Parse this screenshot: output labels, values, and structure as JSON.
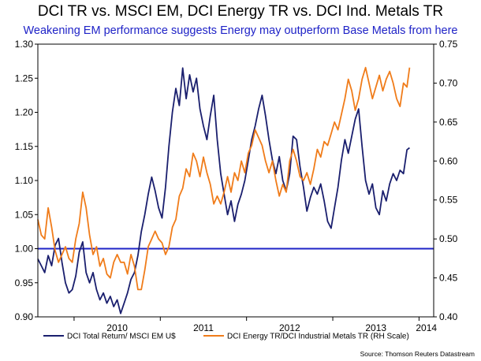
{
  "chart_data": {
    "type": "line",
    "title": "DCI TR vs.  MSCI EM, DCI Energy TR vs. DCI Ind. Metals TR",
    "subtitle": "Weakening EM performance suggests Energy may outperform Base Metals from here",
    "source": "Source: Thomson Reuters Datastream",
    "x_tick_labels": [
      "2010",
      "2011",
      "2012",
      "2013",
      "2014"
    ],
    "x_range": [
      2009.58,
      2014.17
    ],
    "y_left": {
      "range": [
        0.9,
        1.3
      ],
      "ticks": [
        "0.90",
        "0.95",
        "1.00",
        "1.05",
        "1.10",
        "1.15",
        "1.20",
        "1.25",
        "1.30"
      ]
    },
    "y_right": {
      "range": [
        0.4,
        0.75
      ],
      "ticks": [
        "0.40",
        "0.45",
        "0.50",
        "0.55",
        "0.60",
        "0.65",
        "0.70",
        "0.75"
      ]
    },
    "reference_line": {
      "axis": "left",
      "value": 1.0,
      "color": "#1f23c7"
    },
    "series": [
      {
        "name": "DCI Total Return/ MSCI EM U$",
        "axis": "left",
        "color": "#1a1f6e",
        "points": [
          [
            2009.58,
            0.985
          ],
          [
            2009.62,
            0.975
          ],
          [
            2009.66,
            0.965
          ],
          [
            2009.7,
            0.99
          ],
          [
            2009.74,
            0.975
          ],
          [
            2009.78,
            1.005
          ],
          [
            2009.82,
            1.015
          ],
          [
            2009.86,
            0.98
          ],
          [
            2009.9,
            0.95
          ],
          [
            2009.94,
            0.935
          ],
          [
            2009.98,
            0.94
          ],
          [
            2010.02,
            0.96
          ],
          [
            2010.06,
            0.995
          ],
          [
            2010.1,
            1.01
          ],
          [
            2010.14,
            0.965
          ],
          [
            2010.18,
            0.95
          ],
          [
            2010.22,
            0.965
          ],
          [
            2010.26,
            0.94
          ],
          [
            2010.3,
            0.925
          ],
          [
            2010.34,
            0.935
          ],
          [
            2010.38,
            0.92
          ],
          [
            2010.42,
            0.93
          ],
          [
            2010.46,
            0.915
          ],
          [
            2010.5,
            0.925
          ],
          [
            2010.54,
            0.905
          ],
          [
            2010.58,
            0.92
          ],
          [
            2010.62,
            0.935
          ],
          [
            2010.66,
            0.955
          ],
          [
            2010.7,
            0.965
          ],
          [
            2010.74,
            0.99
          ],
          [
            2010.78,
            1.025
          ],
          [
            2010.82,
            1.05
          ],
          [
            2010.86,
            1.08
          ],
          [
            2010.9,
            1.105
          ],
          [
            2010.94,
            1.085
          ],
          [
            2010.98,
            1.06
          ],
          [
            2011.02,
            1.045
          ],
          [
            2011.06,
            1.09
          ],
          [
            2011.1,
            1.15
          ],
          [
            2011.14,
            1.2
          ],
          [
            2011.18,
            1.235
          ],
          [
            2011.22,
            1.21
          ],
          [
            2011.26,
            1.265
          ],
          [
            2011.3,
            1.22
          ],
          [
            2011.34,
            1.255
          ],
          [
            2011.38,
            1.23
          ],
          [
            2011.42,
            1.25
          ],
          [
            2011.46,
            1.205
          ],
          [
            2011.5,
            1.18
          ],
          [
            2011.54,
            1.16
          ],
          [
            2011.58,
            1.195
          ],
          [
            2011.62,
            1.225
          ],
          [
            2011.66,
            1.16
          ],
          [
            2011.7,
            1.11
          ],
          [
            2011.74,
            1.08
          ],
          [
            2011.78,
            1.05
          ],
          [
            2011.82,
            1.07
          ],
          [
            2011.86,
            1.04
          ],
          [
            2011.9,
            1.065
          ],
          [
            2011.94,
            1.08
          ],
          [
            2011.98,
            1.1
          ],
          [
            2012.02,
            1.13
          ],
          [
            2012.06,
            1.16
          ],
          [
            2012.1,
            1.18
          ],
          [
            2012.14,
            1.205
          ],
          [
            2012.18,
            1.225
          ],
          [
            2012.22,
            1.195
          ],
          [
            2012.26,
            1.16
          ],
          [
            2012.3,
            1.13
          ],
          [
            2012.34,
            1.11
          ],
          [
            2012.38,
            1.135
          ],
          [
            2012.42,
            1.1
          ],
          [
            2012.46,
            1.085
          ],
          [
            2012.5,
            1.11
          ],
          [
            2012.54,
            1.165
          ],
          [
            2012.58,
            1.16
          ],
          [
            2012.62,
            1.12
          ],
          [
            2012.66,
            1.09
          ],
          [
            2012.7,
            1.055
          ],
          [
            2012.74,
            1.075
          ],
          [
            2012.78,
            1.09
          ],
          [
            2012.82,
            1.08
          ],
          [
            2012.86,
            1.095
          ],
          [
            2012.9,
            1.07
          ],
          [
            2012.94,
            1.04
          ],
          [
            2012.98,
            1.03
          ],
          [
            2013.02,
            1.06
          ],
          [
            2013.06,
            1.09
          ],
          [
            2013.1,
            1.13
          ],
          [
            2013.14,
            1.16
          ],
          [
            2013.18,
            1.14
          ],
          [
            2013.22,
            1.165
          ],
          [
            2013.26,
            1.19
          ],
          [
            2013.3,
            1.205
          ],
          [
            2013.34,
            1.15
          ],
          [
            2013.38,
            1.1
          ],
          [
            2013.42,
            1.08
          ],
          [
            2013.46,
            1.095
          ],
          [
            2013.5,
            1.06
          ],
          [
            2013.54,
            1.05
          ],
          [
            2013.58,
            1.085
          ],
          [
            2013.62,
            1.07
          ],
          [
            2013.66,
            1.095
          ],
          [
            2013.7,
            1.11
          ],
          [
            2013.74,
            1.1
          ],
          [
            2013.78,
            1.115
          ],
          [
            2013.82,
            1.11
          ],
          [
            2013.86,
            1.145
          ],
          [
            2013.89,
            1.148
          ]
        ]
      },
      {
        "name": "DCI Energy TR/DCI Industrial Metals TR (RH Scale)",
        "axis": "right",
        "color": "#f07c1a",
        "points": [
          [
            2009.58,
            0.525
          ],
          [
            2009.62,
            0.505
          ],
          [
            2009.66,
            0.5
          ],
          [
            2009.7,
            0.54
          ],
          [
            2009.74,
            0.515
          ],
          [
            2009.78,
            0.485
          ],
          [
            2009.82,
            0.47
          ],
          [
            2009.86,
            0.48
          ],
          [
            2009.9,
            0.49
          ],
          [
            2009.94,
            0.475
          ],
          [
            2009.98,
            0.47
          ],
          [
            2010.02,
            0.5
          ],
          [
            2010.06,
            0.52
          ],
          [
            2010.1,
            0.56
          ],
          [
            2010.14,
            0.54
          ],
          [
            2010.18,
            0.505
          ],
          [
            2010.22,
            0.48
          ],
          [
            2010.26,
            0.49
          ],
          [
            2010.3,
            0.465
          ],
          [
            2010.34,
            0.475
          ],
          [
            2010.38,
            0.455
          ],
          [
            2010.42,
            0.45
          ],
          [
            2010.46,
            0.47
          ],
          [
            2010.5,
            0.48
          ],
          [
            2010.54,
            0.47
          ],
          [
            2010.58,
            0.47
          ],
          [
            2010.62,
            0.455
          ],
          [
            2010.66,
            0.48
          ],
          [
            2010.7,
            0.465
          ],
          [
            2010.74,
            0.435
          ],
          [
            2010.78,
            0.435
          ],
          [
            2010.82,
            0.46
          ],
          [
            2010.86,
            0.49
          ],
          [
            2010.9,
            0.5
          ],
          [
            2010.94,
            0.51
          ],
          [
            2010.98,
            0.5
          ],
          [
            2011.02,
            0.495
          ],
          [
            2011.06,
            0.48
          ],
          [
            2011.1,
            0.49
          ],
          [
            2011.14,
            0.515
          ],
          [
            2011.18,
            0.525
          ],
          [
            2011.22,
            0.555
          ],
          [
            2011.26,
            0.565
          ],
          [
            2011.3,
            0.59
          ],
          [
            2011.34,
            0.58
          ],
          [
            2011.38,
            0.61
          ],
          [
            2011.42,
            0.6
          ],
          [
            2011.46,
            0.58
          ],
          [
            2011.5,
            0.605
          ],
          [
            2011.54,
            0.585
          ],
          [
            2011.58,
            0.57
          ],
          [
            2011.62,
            0.545
          ],
          [
            2011.66,
            0.555
          ],
          [
            2011.7,
            0.545
          ],
          [
            2011.74,
            0.56
          ],
          [
            2011.78,
            0.58
          ],
          [
            2011.82,
            0.56
          ],
          [
            2011.86,
            0.585
          ],
          [
            2011.9,
            0.575
          ],
          [
            2011.94,
            0.6
          ],
          [
            2011.98,
            0.585
          ],
          [
            2012.02,
            0.61
          ],
          [
            2012.06,
            0.62
          ],
          [
            2012.1,
            0.64
          ],
          [
            2012.14,
            0.63
          ],
          [
            2012.18,
            0.62
          ],
          [
            2012.22,
            0.6
          ],
          [
            2012.26,
            0.585
          ],
          [
            2012.3,
            0.6
          ],
          [
            2012.34,
            0.575
          ],
          [
            2012.38,
            0.555
          ],
          [
            2012.42,
            0.57
          ],
          [
            2012.46,
            0.56
          ],
          [
            2012.5,
            0.6
          ],
          [
            2012.54,
            0.615
          ],
          [
            2012.58,
            0.6
          ],
          [
            2012.62,
            0.58
          ],
          [
            2012.66,
            0.575
          ],
          [
            2012.7,
            0.585
          ],
          [
            2012.74,
            0.57
          ],
          [
            2012.78,
            0.59
          ],
          [
            2012.82,
            0.615
          ],
          [
            2012.86,
            0.605
          ],
          [
            2012.9,
            0.625
          ],
          [
            2012.94,
            0.62
          ],
          [
            2012.98,
            0.635
          ],
          [
            2013.02,
            0.65
          ],
          [
            2013.06,
            0.64
          ],
          [
            2013.1,
            0.66
          ],
          [
            2013.14,
            0.68
          ],
          [
            2013.18,
            0.705
          ],
          [
            2013.22,
            0.69
          ],
          [
            2013.26,
            0.665
          ],
          [
            2013.3,
            0.68
          ],
          [
            2013.34,
            0.705
          ],
          [
            2013.38,
            0.72
          ],
          [
            2013.42,
            0.7
          ],
          [
            2013.46,
            0.68
          ],
          [
            2013.5,
            0.695
          ],
          [
            2013.54,
            0.71
          ],
          [
            2013.58,
            0.69
          ],
          [
            2013.62,
            0.705
          ],
          [
            2013.66,
            0.715
          ],
          [
            2013.7,
            0.7
          ],
          [
            2013.74,
            0.68
          ],
          [
            2013.78,
            0.67
          ],
          [
            2013.82,
            0.7
          ],
          [
            2013.86,
            0.695
          ],
          [
            2013.89,
            0.72
          ]
        ]
      }
    ]
  }
}
